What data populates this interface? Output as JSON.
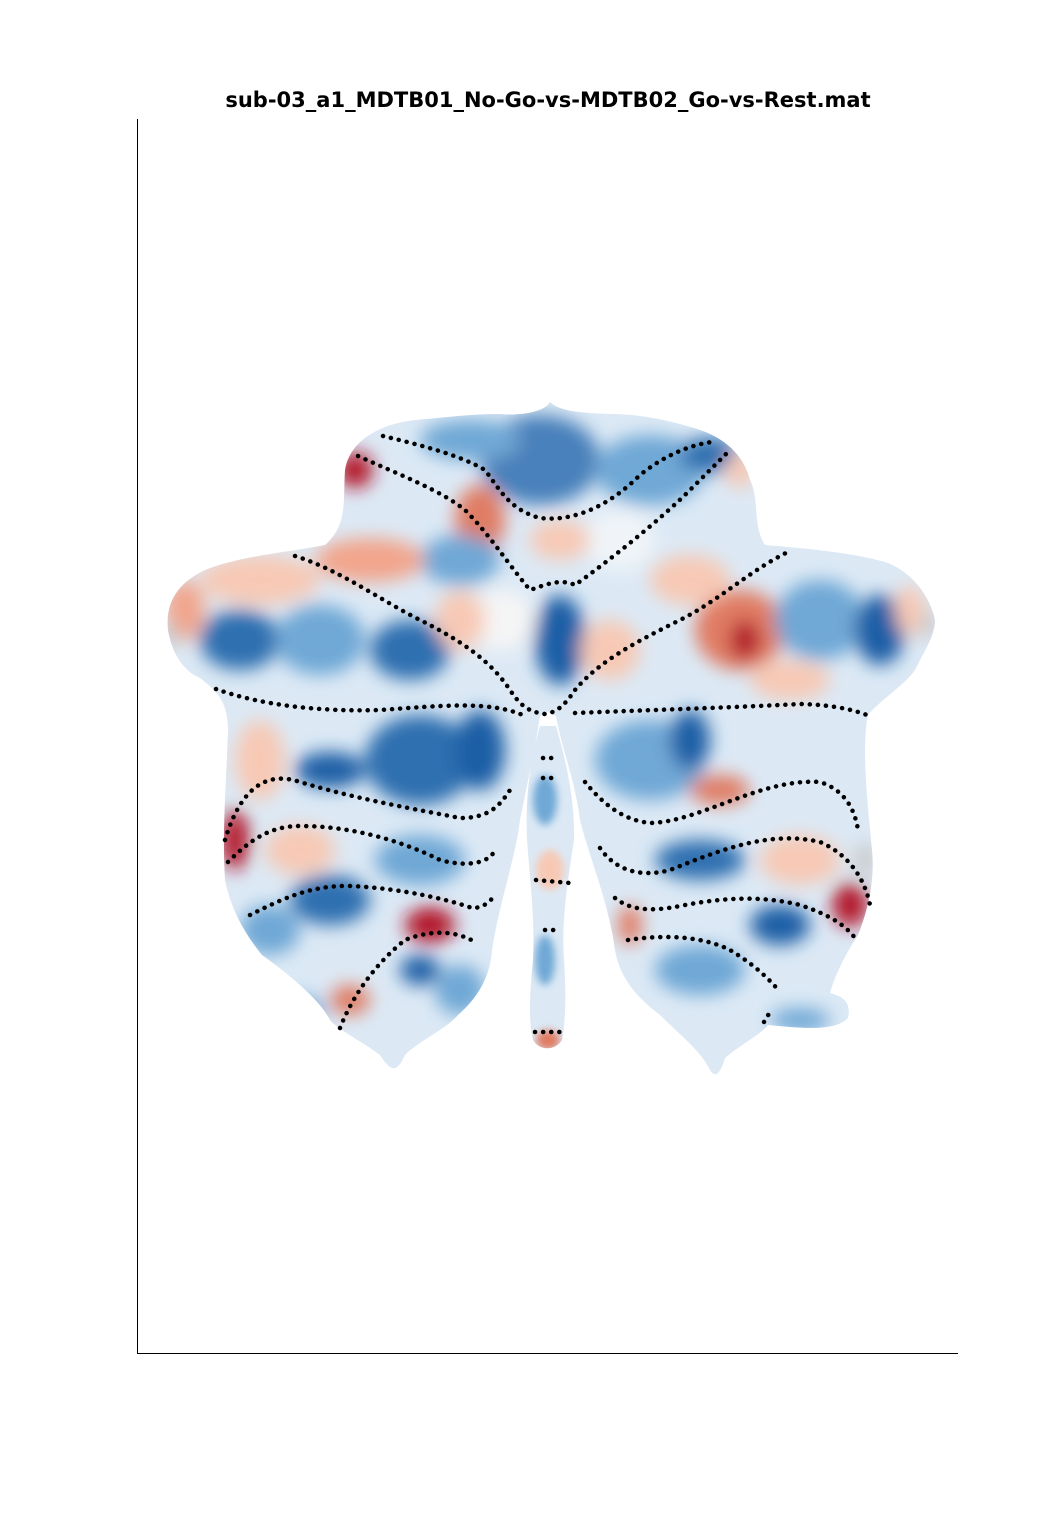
{
  "figure": {
    "title": "sub-03_a1_MDTB01_No-Go-vs-MDTB02_Go-vs-Rest.mat"
  },
  "flatmap": {
    "colormap": "diverging blue-white-red",
    "colors": {
      "negative_strong": "#1f5fa6",
      "negative_mid": "#6fa8d6",
      "negative_light": "#c7dcef",
      "neutral": "#f5f5f5",
      "positive_light": "#f7c9b5",
      "positive_mid": "#e0735f",
      "positive_strong": "#b2182b",
      "missing": "#c8c8c8",
      "boundary_dots": "#000000",
      "axes": "#000000"
    },
    "boundary_style": "dotted"
  }
}
